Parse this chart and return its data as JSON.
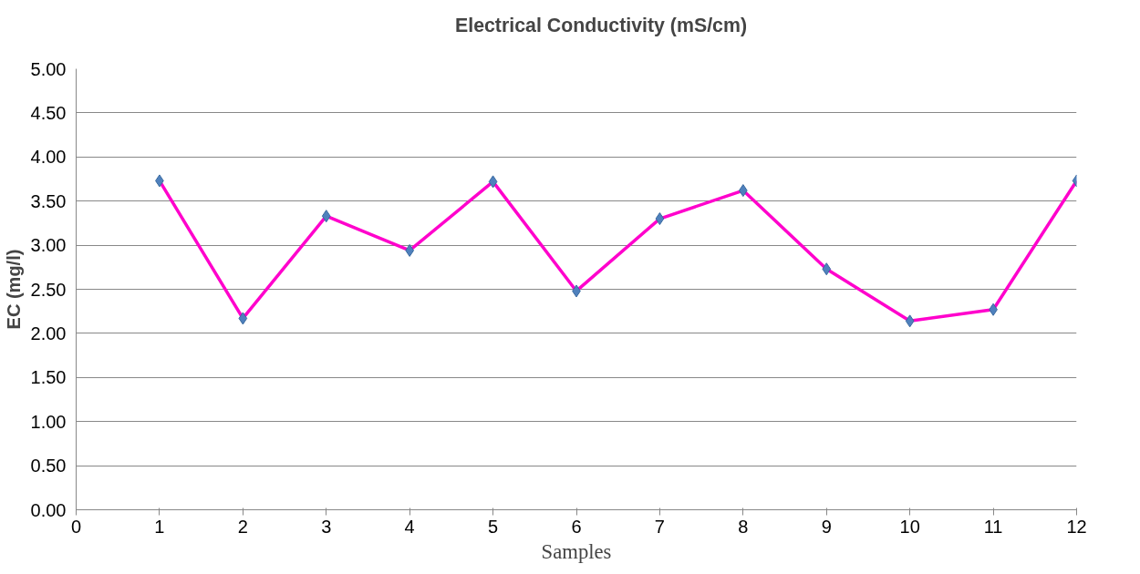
{
  "chart_data": {
    "type": "line",
    "xlabel": "Samples",
    "ylabel": "EC (mg/l)",
    "x": [
      1,
      2,
      3,
      4,
      5,
      6,
      7,
      8,
      9,
      10,
      11,
      12
    ],
    "series": [
      {
        "name": "Electrical Conductivity (mS/cm)",
        "color": "#ff00cc",
        "values": [
          3.73,
          2.17,
          3.33,
          2.94,
          3.72,
          2.48,
          3.3,
          3.62,
          2.73,
          2.14,
          2.27,
          3.73
        ]
      }
    ],
    "marker": "diamond",
    "line_style": "solid",
    "xlim": [
      0,
      12
    ],
    "xticks": [
      0,
      1,
      2,
      3,
      4,
      5,
      6,
      7,
      8,
      9,
      10,
      11,
      12
    ],
    "ylim": [
      0,
      5
    ],
    "yticks": [
      {
        "value": 0,
        "label": "0.00"
      },
      {
        "value": 0.5,
        "label": "0.50"
      },
      {
        "value": 1,
        "label": "1.00"
      },
      {
        "value": 1.5,
        "label": "1.50"
      },
      {
        "value": 2,
        "label": "2.00"
      },
      {
        "value": 2.5,
        "label": "2.50"
      },
      {
        "value": 3,
        "label": "3.00"
      },
      {
        "value": 3.5,
        "label": "3.50"
      },
      {
        "value": 4,
        "label": "4.00"
      },
      {
        "value": 4.5,
        "label": "4.50"
      },
      {
        "value": 5,
        "label": "5.00"
      }
    ],
    "grid": "y",
    "legend": "top"
  }
}
